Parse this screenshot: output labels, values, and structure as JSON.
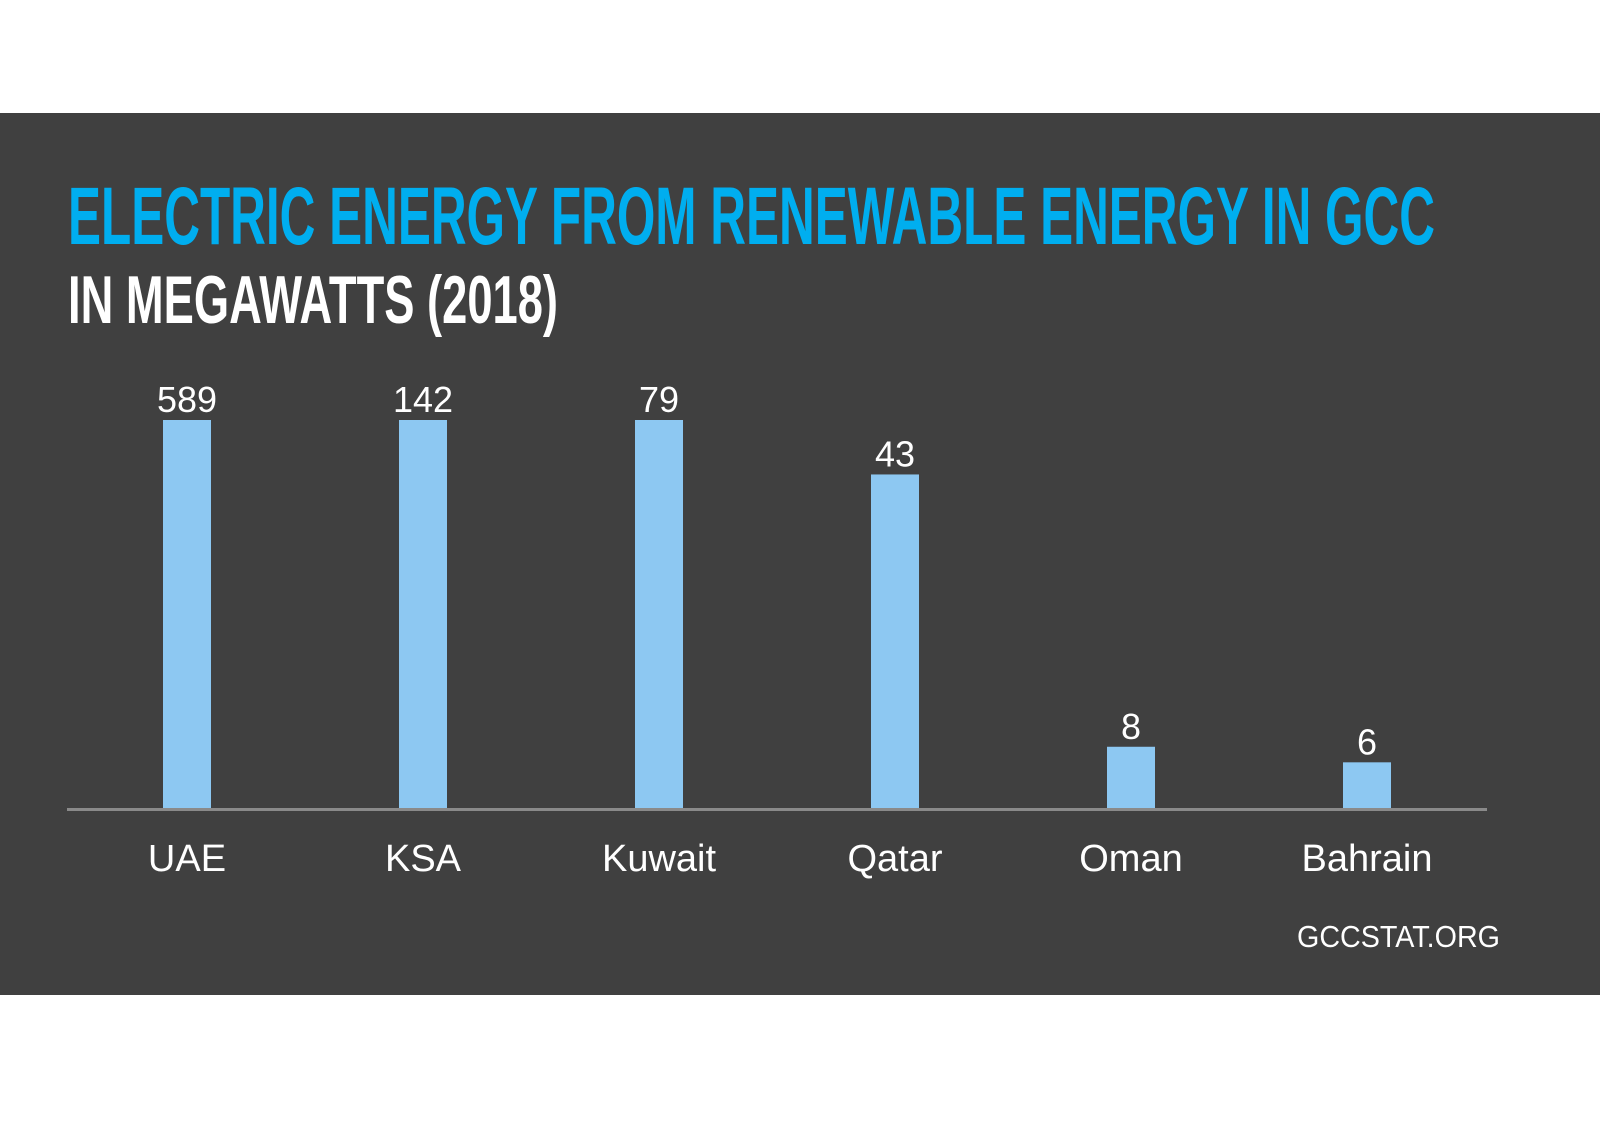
{
  "chart_data": {
    "type": "bar",
    "title": "ELECTRIC ENERGY FROM RENEWABLE ENERGY IN GCC",
    "subtitle": "IN MEGAWATTS (2018)",
    "categories": [
      "UAE",
      "KSA",
      "Kuwait",
      "Qatar",
      "Oman",
      "Bahrain"
    ],
    "values": [
      589,
      142,
      79,
      43,
      8,
      6
    ],
    "value_labels": [
      "589",
      "142",
      "79",
      "43",
      "8",
      "6"
    ],
    "xlabel": "",
    "ylabel": "",
    "ylim": [
      0,
      50
    ],
    "scale_note_visual": "bars above axis maximum are truncated at equal height",
    "grid": false,
    "source": "GCCSTAT.ORG",
    "colors": {
      "background": "#404040",
      "title": "#00AEEF",
      "subtitle": "#FFFFFF",
      "bar": "#8DC8F2",
      "axis": "#8A8A8A",
      "text": "#FFFFFF"
    }
  }
}
